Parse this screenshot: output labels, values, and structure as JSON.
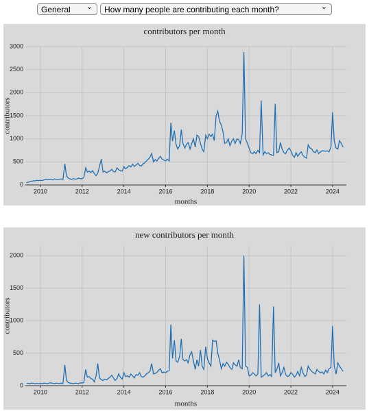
{
  "controls": {
    "category": "General",
    "question": "How many people are contributing each month?"
  },
  "chart_data": [
    {
      "type": "line",
      "title": "contributors per month",
      "xlabel": "months",
      "ylabel": "contributors",
      "xlim": [
        2009.28,
        2024.66
      ],
      "xticks": [
        2010,
        2012,
        2014,
        2016,
        2018,
        2020,
        2022,
        2024
      ],
      "ylim": [
        0,
        3000
      ],
      "yticks": [
        0,
        500,
        1000,
        1500,
        2000,
        2500,
        3000
      ],
      "grid": true,
      "x": [
        2009.33,
        2009.42,
        2009.5,
        2009.58,
        2009.67,
        2009.75,
        2009.83,
        2009.92,
        2010,
        2010.08,
        2010.17,
        2010.25,
        2010.33,
        2010.42,
        2010.5,
        2010.58,
        2010.67,
        2010.75,
        2010.83,
        2010.92,
        2011,
        2011.08,
        2011.17,
        2011.25,
        2011.33,
        2011.42,
        2011.5,
        2011.58,
        2011.67,
        2011.75,
        2011.83,
        2011.92,
        2012,
        2012.08,
        2012.17,
        2012.25,
        2012.33,
        2012.42,
        2012.5,
        2012.58,
        2012.67,
        2012.75,
        2012.83,
        2012.92,
        2013,
        2013.08,
        2013.17,
        2013.25,
        2013.33,
        2013.42,
        2013.5,
        2013.58,
        2013.67,
        2013.75,
        2013.83,
        2013.92,
        2014,
        2014.08,
        2014.17,
        2014.25,
        2014.33,
        2014.42,
        2014.5,
        2014.58,
        2014.67,
        2014.75,
        2014.83,
        2014.92,
        2015,
        2015.08,
        2015.17,
        2015.25,
        2015.33,
        2015.42,
        2015.5,
        2015.58,
        2015.67,
        2015.75,
        2015.83,
        2015.92,
        2016,
        2016.08,
        2016.17,
        2016.25,
        2016.33,
        2016.42,
        2016.5,
        2016.58,
        2016.67,
        2016.75,
        2016.83,
        2016.92,
        2017,
        2017.08,
        2017.17,
        2017.25,
        2017.33,
        2017.42,
        2017.5,
        2017.58,
        2017.67,
        2017.75,
        2017.83,
        2017.92,
        2018,
        2018.08,
        2018.17,
        2018.25,
        2018.33,
        2018.42,
        2018.5,
        2018.58,
        2018.67,
        2018.75,
        2018.83,
        2018.92,
        2019,
        2019.08,
        2019.17,
        2019.25,
        2019.33,
        2019.42,
        2019.5,
        2019.58,
        2019.67,
        2019.75,
        2019.83,
        2019.92,
        2020,
        2020.08,
        2020.17,
        2020.25,
        2020.33,
        2020.42,
        2020.5,
        2020.58,
        2020.67,
        2020.75,
        2020.83,
        2020.92,
        2021,
        2021.08,
        2021.17,
        2021.25,
        2021.33,
        2021.42,
        2021.5,
        2021.58,
        2021.67,
        2021.75,
        2021.83,
        2021.92,
        2022,
        2022.08,
        2022.17,
        2022.25,
        2022.33,
        2022.42,
        2022.5,
        2022.58,
        2022.67,
        2022.75,
        2022.83,
        2022.92,
        2023,
        2023.08,
        2023.17,
        2023.25,
        2023.33,
        2023.42,
        2023.5,
        2023.58,
        2023.67,
        2023.75,
        2023.83,
        2023.92,
        2024,
        2024.08,
        2024.17,
        2024.25,
        2024.33,
        2024.42,
        2024.5
      ],
      "series": [
        {
          "name": "contributors",
          "color": "#1f6fb4",
          "values": [
            50,
            60,
            70,
            80,
            90,
            90,
            100,
            95,
            100,
            95,
            110,
            120,
            115,
            120,
            125,
            110,
            130,
            120,
            115,
            125,
            130,
            120,
            460,
            200,
            150,
            130,
            120,
            140,
            125,
            130,
            150,
            135,
            140,
            160,
            370,
            280,
            300,
            270,
            310,
            250,
            200,
            260,
            400,
            560,
            280,
            300,
            260,
            290,
            300,
            340,
            290,
            280,
            370,
            330,
            310,
            300,
            400,
            350,
            380,
            420,
            390,
            450,
            400,
            430,
            470,
            420,
            410,
            460,
            480,
            520,
            560,
            600,
            680,
            500,
            550,
            520,
            580,
            620,
            560,
            540,
            520,
            560,
            520,
            1350,
            950,
            1180,
            880,
            780,
            850,
            1200,
            900,
            800,
            880,
            920,
            780,
            900,
            1000,
            820,
            1080,
            1050,
            900,
            780,
            720,
            1080,
            1000,
            1100,
            1050,
            1100,
            960,
            1500,
            1600,
            1380,
            1300,
            1150,
            900,
            920,
            1000,
            850,
            950,
            1000,
            900,
            1000,
            980,
            900,
            1100,
            2880,
            1000,
            900,
            800,
            700,
            680,
            720,
            680,
            750,
            700,
            1830,
            650,
            720,
            680,
            700,
            660,
            650,
            640,
            1760,
            700,
            720,
            920,
            780,
            700,
            680,
            750,
            800,
            740,
            650,
            600,
            700,
            620,
            680,
            720,
            640,
            600,
            580,
            870,
            800,
            780,
            720,
            700,
            760,
            680,
            720,
            740,
            740,
            730,
            740,
            720,
            820,
            1580,
            950,
            800,
            780,
            960,
            900,
            820
          ]
        }
      ]
    },
    {
      "type": "line",
      "title": "new contributors per month",
      "xlabel": "months",
      "ylabel": "contributors",
      "xlim": [
        2009.28,
        2024.66
      ],
      "xticks": [
        2010,
        2012,
        2014,
        2016,
        2018,
        2020,
        2022,
        2024
      ],
      "ylim": [
        0,
        2150
      ],
      "yticks": [
        0,
        500,
        1000,
        1500,
        2000
      ],
      "grid": true,
      "x": [
        2009.33,
        2009.42,
        2009.5,
        2009.58,
        2009.67,
        2009.75,
        2009.83,
        2009.92,
        2010,
        2010.08,
        2010.17,
        2010.25,
        2010.33,
        2010.42,
        2010.5,
        2010.58,
        2010.67,
        2010.75,
        2010.83,
        2010.92,
        2011,
        2011.08,
        2011.17,
        2011.25,
        2011.33,
        2011.42,
        2011.5,
        2011.58,
        2011.67,
        2011.75,
        2011.83,
        2011.92,
        2012,
        2012.08,
        2012.17,
        2012.25,
        2012.33,
        2012.42,
        2012.5,
        2012.58,
        2012.67,
        2012.75,
        2012.83,
        2012.92,
        2013,
        2013.08,
        2013.17,
        2013.25,
        2013.33,
        2013.42,
        2013.5,
        2013.58,
        2013.67,
        2013.75,
        2013.83,
        2013.92,
        2014,
        2014.08,
        2014.17,
        2014.25,
        2014.33,
        2014.42,
        2014.5,
        2014.58,
        2014.67,
        2014.75,
        2014.83,
        2014.92,
        2015,
        2015.08,
        2015.17,
        2015.25,
        2015.33,
        2015.42,
        2015.5,
        2015.58,
        2015.67,
        2015.75,
        2015.83,
        2015.92,
        2016,
        2016.08,
        2016.17,
        2016.25,
        2016.33,
        2016.42,
        2016.5,
        2016.58,
        2016.67,
        2016.75,
        2016.83,
        2016.92,
        2017,
        2017.08,
        2017.17,
        2017.25,
        2017.33,
        2017.42,
        2017.5,
        2017.58,
        2017.67,
        2017.75,
        2017.83,
        2017.92,
        2018,
        2018.08,
        2018.17,
        2018.25,
        2018.33,
        2018.42,
        2018.5,
        2018.58,
        2018.67,
        2018.75,
        2018.83,
        2018.92,
        2019,
        2019.08,
        2019.17,
        2019.25,
        2019.33,
        2019.42,
        2019.5,
        2019.58,
        2019.67,
        2019.75,
        2019.83,
        2019.92,
        2020,
        2020.08,
        2020.17,
        2020.25,
        2020.33,
        2020.42,
        2020.5,
        2020.58,
        2020.67,
        2020.75,
        2020.83,
        2020.92,
        2021,
        2021.08,
        2021.17,
        2021.25,
        2021.33,
        2021.42,
        2021.5,
        2021.58,
        2021.67,
        2021.75,
        2021.83,
        2021.92,
        2022,
        2022.08,
        2022.17,
        2022.25,
        2022.33,
        2022.42,
        2022.5,
        2022.58,
        2022.67,
        2022.75,
        2022.83,
        2022.92,
        2023,
        2023.08,
        2023.17,
        2023.25,
        2023.33,
        2023.42,
        2023.5,
        2023.58,
        2023.67,
        2023.75,
        2023.83,
        2023.92,
        2024,
        2024.08,
        2024.17,
        2024.25,
        2024.33,
        2024.42,
        2024.5
      ],
      "series": [
        {
          "name": "new contributors",
          "color": "#1f6fb4",
          "values": [
            30,
            35,
            30,
            40,
            35,
            30,
            35,
            30,
            35,
            30,
            40,
            35,
            30,
            40,
            45,
            35,
            30,
            40,
            35,
            30,
            40,
            35,
            320,
            80,
            50,
            40,
            35,
            30,
            40,
            35,
            30,
            45,
            40,
            50,
            250,
            130,
            140,
            110,
            100,
            60,
            150,
            340,
            120,
            90,
            80,
            100,
            90,
            110,
            130,
            160,
            120,
            80,
            110,
            180,
            130,
            100,
            200,
            140,
            150,
            130,
            180,
            150,
            120,
            170,
            160,
            200,
            140,
            130,
            150,
            180,
            200,
            220,
            340,
            180,
            190,
            200,
            240,
            260,
            200,
            210,
            200,
            220,
            230,
            940,
            420,
            700,
            380,
            360,
            450,
            720,
            400,
            380,
            400,
            350,
            480,
            520,
            380,
            250,
            400,
            300,
            550,
            300,
            250,
            600,
            420,
            350,
            300,
            700,
            680,
            690,
            500,
            400,
            260,
            340,
            300,
            360,
            330,
            280,
            250,
            350,
            320,
            300,
            400,
            280,
            260,
            2000,
            300,
            280,
            150,
            160,
            200,
            180,
            150,
            180,
            1250,
            130,
            150,
            170,
            200,
            150,
            170,
            140,
            1220,
            200,
            250,
            350,
            150,
            200,
            280,
            170,
            140,
            150,
            200,
            180,
            130,
            160,
            220,
            150,
            280,
            200,
            140,
            160,
            300,
            250,
            220,
            200,
            180,
            250,
            220,
            200,
            210,
            180,
            240,
            200,
            260,
            280,
            920,
            300,
            180,
            350,
            300,
            260,
            220
          ]
        }
      ]
    }
  ]
}
